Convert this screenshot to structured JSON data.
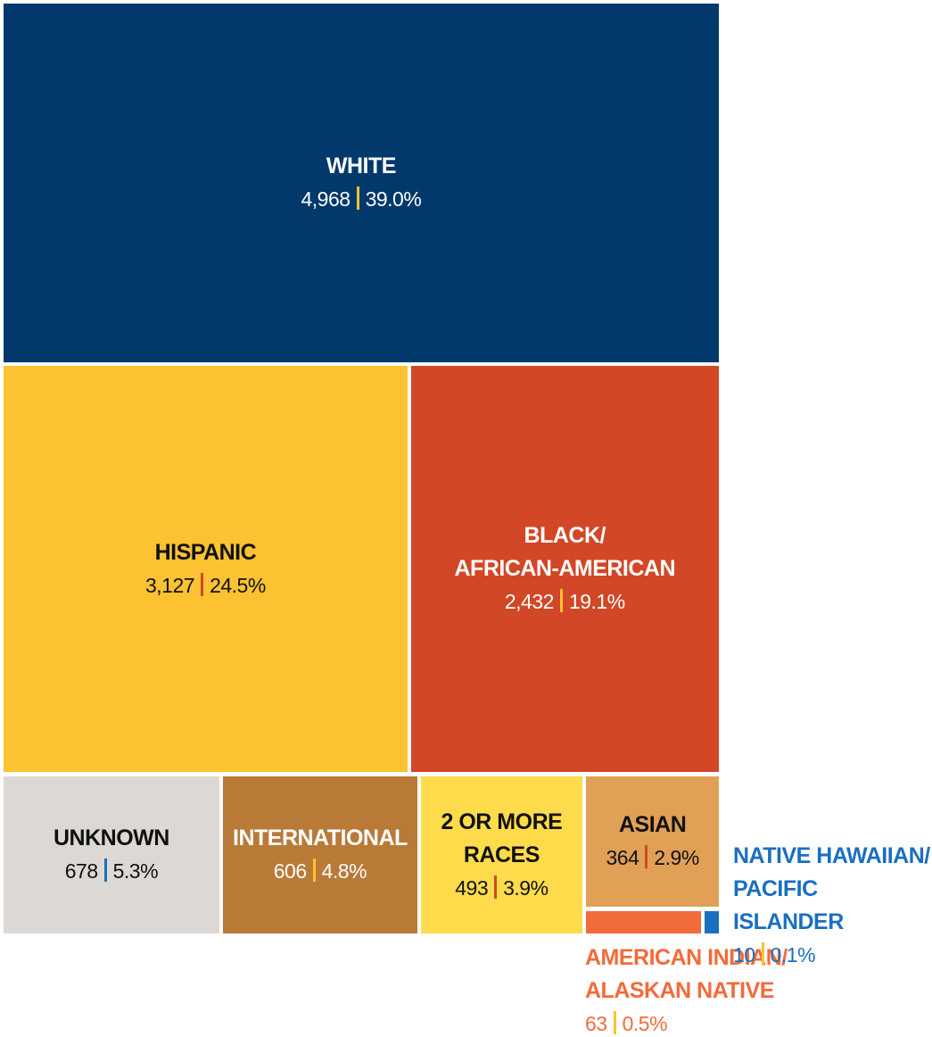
{
  "chart_data": {
    "type": "treemap",
    "categories": [
      "WHITE",
      "HISPANIC",
      "BLACK/\nAFRICAN-AMERICAN",
      "UNKNOWN",
      "INTERNATIONAL",
      "2 OR MORE\nRACES",
      "ASIAN",
      "AMERICAN INDIAN/\nALASKAN NATIVE",
      "NATIVE HAWAIIAN/\nPACIFIC ISLANDER"
    ],
    "values": [
      4968,
      3127,
      2432,
      678,
      606,
      493,
      364,
      63,
      10
    ],
    "value_labels": [
      "4,968",
      "3,127",
      "2,432",
      "678",
      "606",
      "493",
      "364",
      "63",
      "10"
    ],
    "percents": [
      39.0,
      24.5,
      19.1,
      5.3,
      4.8,
      3.9,
      2.9,
      0.5,
      0.1
    ],
    "percent_labels": [
      "39.0%",
      "24.5%",
      "19.1%",
      "5.3%",
      "4.8%",
      "3.9%",
      "2.9%",
      "0.5%",
      "0.1%"
    ],
    "colors": [
      "#02386b",
      "#fdc231",
      "#d24726",
      "#dcd8d4",
      "#b97a38",
      "#fedb4a",
      "#e0a055",
      "#f26b3a",
      "#1a6fc0"
    ]
  }
}
